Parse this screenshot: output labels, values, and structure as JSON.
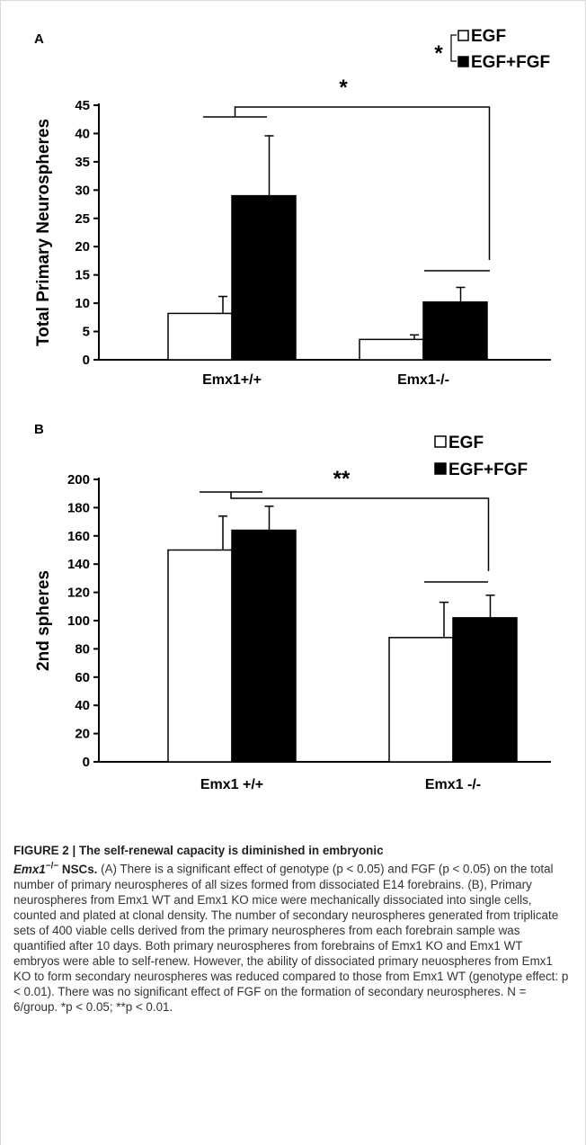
{
  "colors": {
    "egf": "#ffffff",
    "egf_fgf": "#000000",
    "stroke": "#000000",
    "caption_text": "#333333",
    "frame": "#d9d9d9"
  },
  "chart_data": [
    {
      "panel": "A",
      "type": "bar",
      "ylabel": "Total Primary Neurospheres",
      "categories": [
        "Emx1+/+",
        "Emx1-/-"
      ],
      "ylim": [
        0,
        45
      ],
      "yticks": [
        "0",
        "5",
        "10",
        "15",
        "20",
        "25",
        "30",
        "35",
        "40",
        "45"
      ],
      "series": [
        {
          "name": "EGF",
          "values": [
            8.2,
            3.6
          ],
          "errors": [
            3.0,
            0.8
          ]
        },
        {
          "name": "EGF+FGF",
          "values": [
            29,
            10.2
          ],
          "errors": [
            10.6,
            2.6
          ]
        }
      ],
      "significance": {
        "genotype": "*",
        "treatment": "*"
      },
      "legend_position": "top-right",
      "grid": false
    },
    {
      "panel": "B",
      "type": "bar",
      "ylabel": "2nd spheres",
      "categories": [
        "Emx1 +/+",
        "Emx1 -/-"
      ],
      "ylim": [
        0,
        200
      ],
      "yticks": [
        "0",
        "20",
        "40",
        "60",
        "80",
        "100",
        "120",
        "140",
        "160",
        "180",
        "200"
      ],
      "series": [
        {
          "name": "EGF",
          "values": [
            150,
            88
          ],
          "errors": [
            24,
            25
          ]
        },
        {
          "name": "EGF+FGF",
          "values": [
            164,
            102
          ],
          "errors": [
            17,
            16
          ]
        }
      ],
      "significance": {
        "genotype": "**"
      },
      "legend_position": "top-right",
      "grid": false
    }
  ],
  "caption": {
    "lead_a": "FIGURE 2 | The self-renewal capacity is diminished in embryonic",
    "lead_b_gene": "Emx1",
    "lead_b_sup": "−/−",
    "lead_b_rest": " NSCs.",
    "body": "(A) There is a significant effect of genotype (p < 0.05) and FGF (p < 0.05) on the total number of primary neurospheres of all sizes formed from dissociated E14 forebrains. (B), Primary neurospheres from Emx1 WT and Emx1 KO mice were mechanically dissociated into single cells, counted and plated at clonal density. The number of secondary neurospheres generated from triplicate sets of 400 viable cells derived from the primary neurospheres from each forebrain sample was quantified after 10 days. Both primary neurospheres from forebrains of Emx1 KO and Emx1 WT embryos were able to self-renew. However, the ability of dissociated primary neuospheres from Emx1 KO to form secondary neurospheres was reduced compared to those from Emx1 WT (genotype effect: p < 0.01). There was no significant effect of FGF on the formation of secondary neurospheres. N = 6/group. *p < 0.05; **p < 0.01."
  }
}
